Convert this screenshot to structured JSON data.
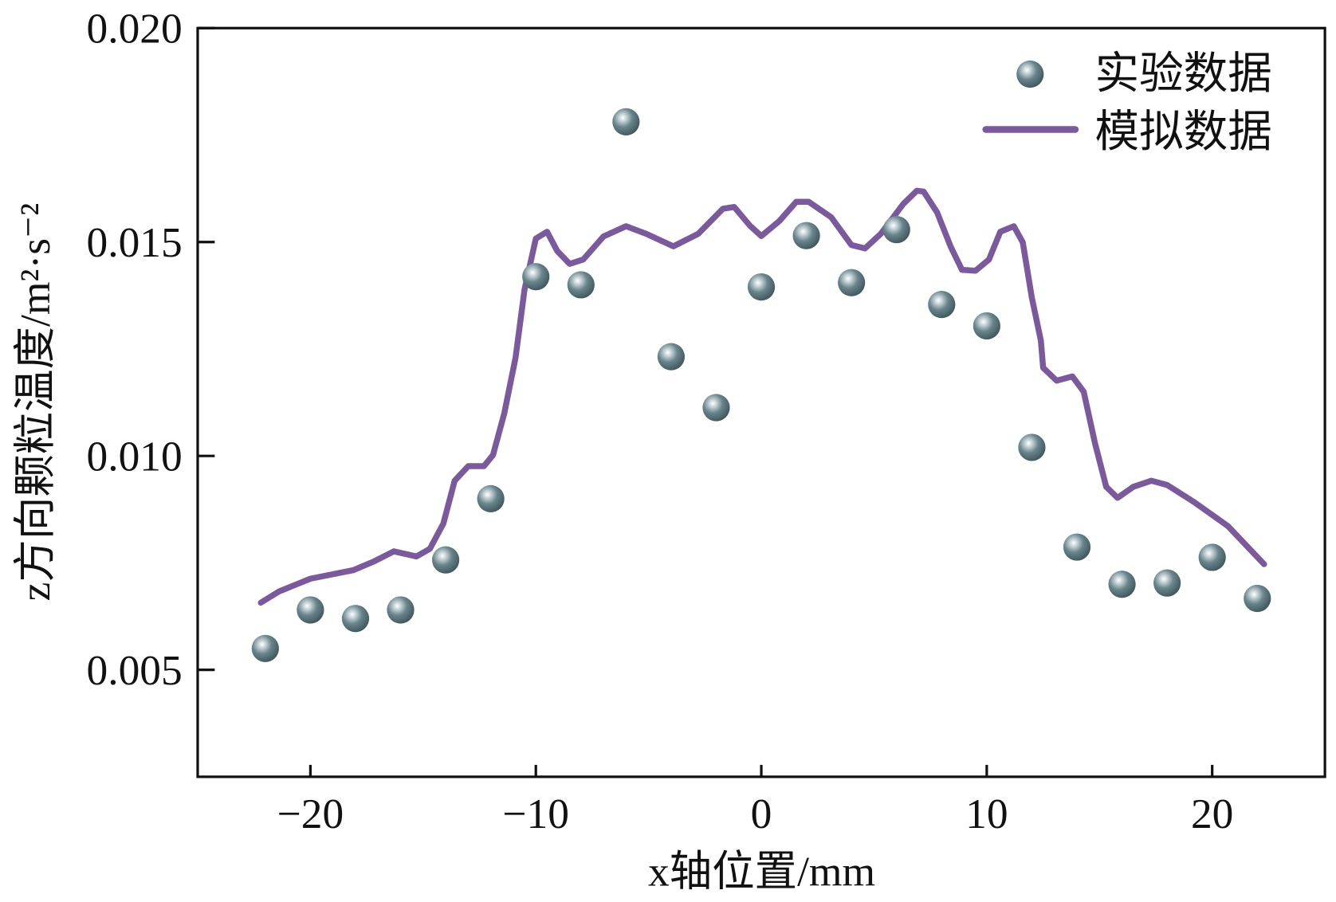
{
  "chart_data": {
    "type": "scatter+line",
    "xlabel": "x轴位置/mm",
    "ylabel": "z方向颗粒温度/m²·s⁻²",
    "xlim": [
      -25,
      25
    ],
    "ylim": [
      0.0025,
      0.02
    ],
    "xticks": [
      -20,
      -10,
      0,
      10,
      20
    ],
    "xtick_labels": [
      "−20",
      "−10",
      "0",
      "10",
      "20"
    ],
    "yticks": [
      0.005,
      0.01,
      0.015,
      0.02
    ],
    "ytick_labels": [
      "0.005",
      "0.010",
      "0.015",
      "0.020"
    ],
    "grid": false,
    "legend_placement": "top-right",
    "colors": {
      "experiment": "#5f7a82",
      "simulation": "#7b5a9c"
    },
    "series": [
      {
        "name": "实验数据",
        "kind": "scatter",
        "x": [
          -22,
          -20,
          -18,
          -16,
          -14,
          -12,
          -10,
          -8,
          -6,
          -4,
          -2,
          0,
          2,
          4,
          6,
          8,
          10,
          12,
          14,
          16,
          18,
          20,
          22
        ],
        "y": [
          0.0055,
          0.0064,
          0.0062,
          0.0064,
          0.00757,
          0.009,
          0.01419,
          0.014,
          0.01781,
          0.01232,
          0.01113,
          0.01395,
          0.01515,
          0.01405,
          0.01529,
          0.01354,
          0.01304,
          0.0102,
          0.00787,
          0.007,
          0.00703,
          0.00763,
          0.00667
        ]
      },
      {
        "name": "模拟数据",
        "kind": "line",
        "x": [
          -22.2,
          -21.4,
          -20,
          -18.1,
          -17.2,
          -16.3,
          -15.3,
          -14.7,
          -14.1,
          -13.6,
          -13.0,
          -12.3,
          -11.9,
          -11.4,
          -10.9,
          -10.5,
          -10,
          -9.5,
          -9.05,
          -8.5,
          -7.9,
          -7,
          -6,
          -5.1,
          -3.9,
          -2.8,
          -1.7,
          -1.2,
          -0.5,
          0,
          0.8,
          1.55,
          2.1,
          3.1,
          4,
          4.6,
          5.3,
          6.3,
          6.9,
          7.2,
          7.8,
          8.4,
          8.9,
          9.5,
          10.1,
          10.6,
          11.2,
          11.6,
          12,
          12.4,
          12.5,
          13.1,
          13.8,
          14.3,
          14.8,
          15.3,
          15.8,
          16.5,
          17.3,
          18,
          19.2,
          20.7,
          22.3
        ],
        "y": [
          0.00657,
          0.00683,
          0.00713,
          0.00733,
          0.00753,
          0.00777,
          0.00765,
          0.00783,
          0.00842,
          0.00942,
          0.00976,
          0.00976,
          0.01002,
          0.011,
          0.0123,
          0.0139,
          0.01508,
          0.01524,
          0.01479,
          0.01449,
          0.01459,
          0.01513,
          0.01537,
          0.01519,
          0.0149,
          0.01519,
          0.01578,
          0.01582,
          0.01538,
          0.01514,
          0.01549,
          0.01594,
          0.01594,
          0.01558,
          0.01493,
          0.01485,
          0.01519,
          0.01589,
          0.0162,
          0.01618,
          0.01569,
          0.01489,
          0.01435,
          0.01433,
          0.01459,
          0.01524,
          0.01537,
          0.01499,
          0.0137,
          0.0127,
          0.01206,
          0.01176,
          0.01186,
          0.0115,
          0.0103,
          0.00928,
          0.00902,
          0.00928,
          0.00942,
          0.00932,
          0.00892,
          0.00836,
          0.00747
        ]
      }
    ]
  }
}
